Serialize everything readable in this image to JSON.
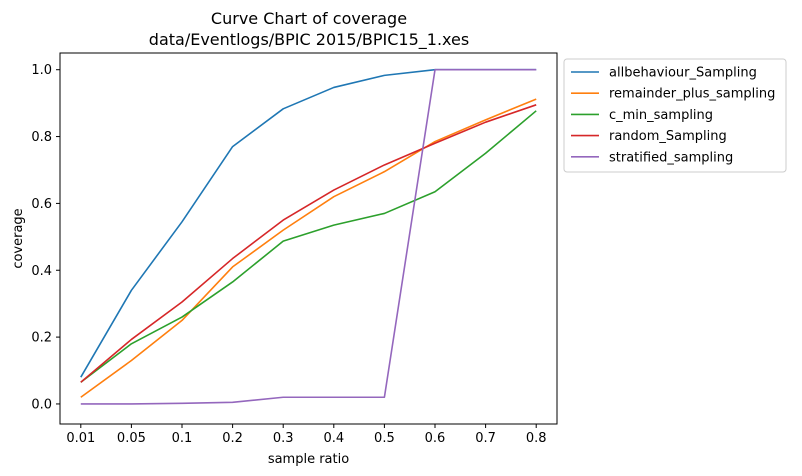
{
  "chart_data": {
    "type": "line",
    "title": "Curve Chart of coverage",
    "subtitle": "data/Eventlogs/BPIC 2015/BPIC15_1.xes",
    "xlabel": "sample ratio",
    "ylabel": "coverage",
    "categories": [
      "0.01",
      "0.05",
      "0.1",
      "0.2",
      "0.3",
      "0.4",
      "0.5",
      "0.6",
      "0.7",
      "0.8"
    ],
    "ylim": [
      -0.06,
      1.05
    ],
    "yticks": [
      "0.0",
      "0.2",
      "0.4",
      "0.6",
      "0.8",
      "1.0"
    ],
    "grid": false,
    "legend_position": "outside-top-right",
    "series": [
      {
        "name": "allbehaviour_Sampling",
        "color": "#1f77b4",
        "values": [
          0.08,
          0.34,
          0.545,
          0.77,
          0.883,
          0.947,
          0.983,
          1.0,
          1.0,
          1.0
        ]
      },
      {
        "name": "remainder_plus_sampling",
        "color": "#ff7f0e",
        "values": [
          0.02,
          0.13,
          0.25,
          0.41,
          0.52,
          0.62,
          0.695,
          0.785,
          0.85,
          0.912
        ]
      },
      {
        "name": "c_min_sampling",
        "color": "#2ca02c",
        "values": [
          0.065,
          0.18,
          0.26,
          0.365,
          0.487,
          0.535,
          0.57,
          0.635,
          0.75,
          0.877
        ]
      },
      {
        "name": "random_Sampling",
        "color": "#d62728",
        "values": [
          0.065,
          0.193,
          0.305,
          0.435,
          0.55,
          0.64,
          0.715,
          0.78,
          0.843,
          0.895
        ]
      },
      {
        "name": "stratified_sampling",
        "color": "#9467bd",
        "values": [
          0.0,
          0.0,
          0.002,
          0.005,
          0.02,
          0.02,
          0.02,
          1.0,
          1.0,
          1.0
        ]
      }
    ]
  }
}
